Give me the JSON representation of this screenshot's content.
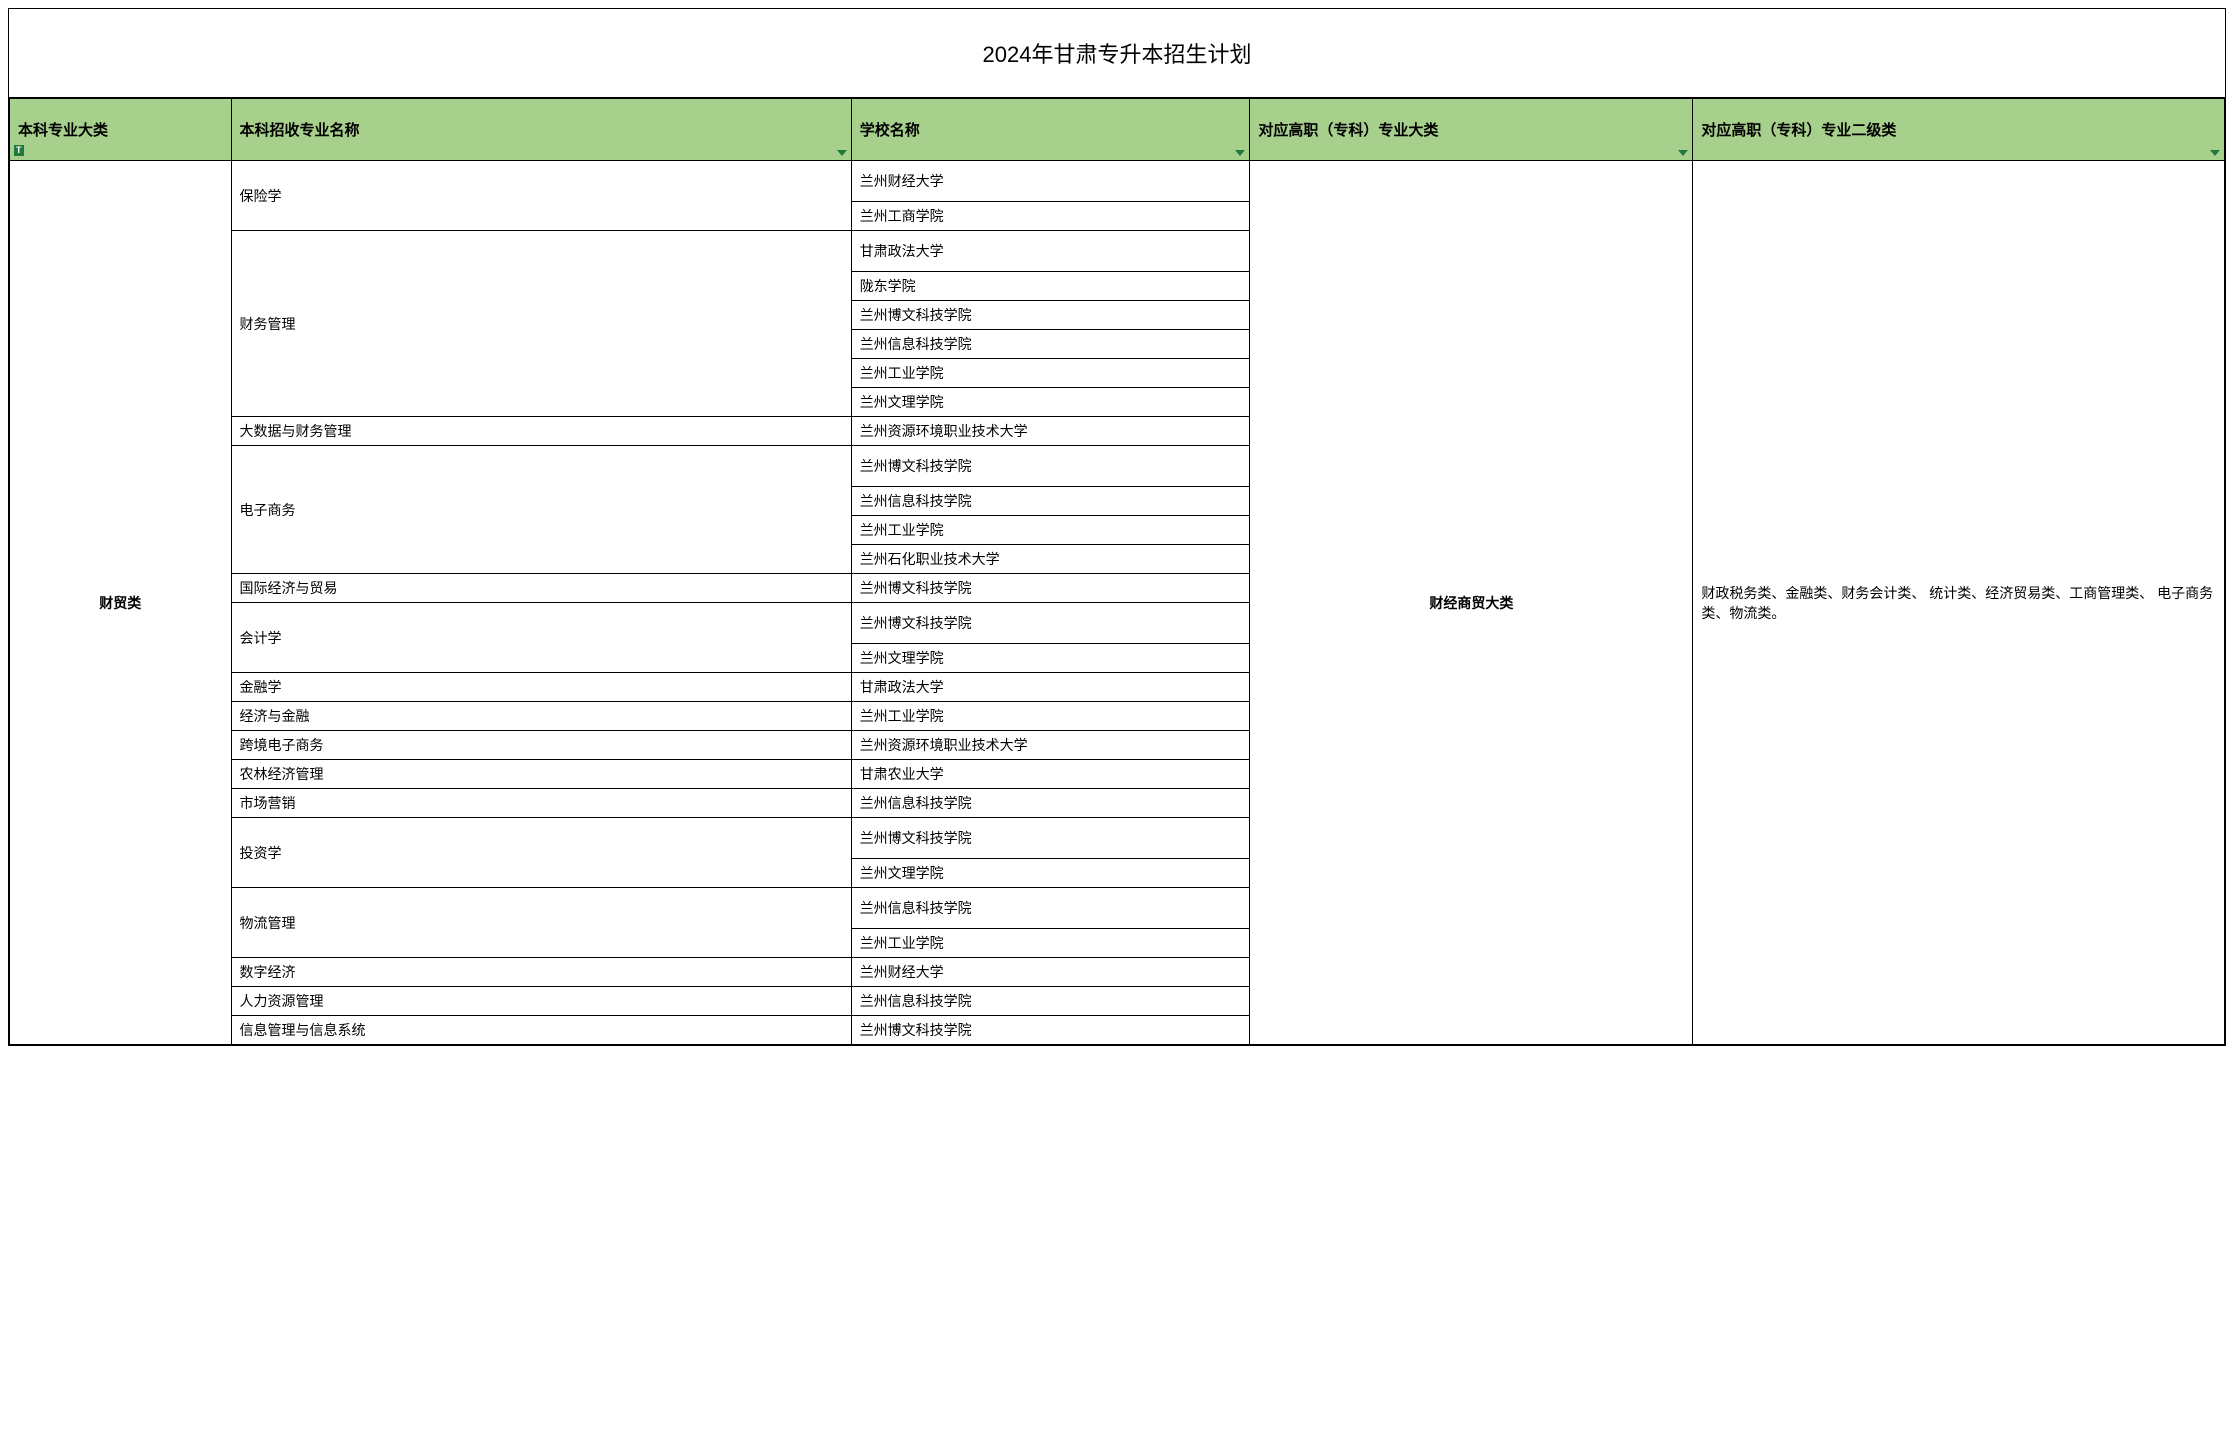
{
  "title": "2024年甘肃专升本招生计划",
  "headers": {
    "col1": "本科专业大类",
    "col2": "本科招收专业名称",
    "col3": "学校名称",
    "col4": "对应高职（专科）专业大类",
    "col5": "对应高职（专科）专业二级类"
  },
  "category": "财贸类",
  "vocational_category": "财经商贸大类",
  "vocational_sub": "财政税务类、金融类、财务会计类、 统计类、经济贸易类、工商管理类、 电子商务类、物流类。",
  "colors": {
    "header_bg": "#a8d08d",
    "border": "#000000",
    "filter_arrow": "#1f7a3e",
    "background": "#ffffff"
  },
  "majors": [
    {
      "name": "保险学",
      "schools": [
        "兰州财经大学",
        "兰州工商学院"
      ]
    },
    {
      "name": "财务管理",
      "schools": [
        "甘肃政法大学",
        "陇东学院",
        "兰州博文科技学院",
        "兰州信息科技学院",
        "兰州工业学院",
        "兰州文理学院"
      ]
    },
    {
      "name": "大数据与财务管理",
      "schools": [
        "兰州资源环境职业技术大学"
      ]
    },
    {
      "name": "电子商务",
      "schools": [
        "兰州博文科技学院",
        "兰州信息科技学院",
        "兰州工业学院",
        "兰州石化职业技术大学"
      ]
    },
    {
      "name": "国际经济与贸易",
      "schools": [
        "兰州博文科技学院"
      ]
    },
    {
      "name": "会计学",
      "schools": [
        "兰州博文科技学院",
        "兰州文理学院"
      ]
    },
    {
      "name": "金融学",
      "schools": [
        "甘肃政法大学"
      ]
    },
    {
      "name": "经济与金融",
      "schools": [
        "兰州工业学院"
      ]
    },
    {
      "name": "跨境电子商务",
      "schools": [
        "兰州资源环境职业技术大学"
      ]
    },
    {
      "name": "农林经济管理",
      "schools": [
        "甘肃农业大学"
      ]
    },
    {
      "name": "市场营销",
      "schools": [
        "兰州信息科技学院"
      ]
    },
    {
      "name": "投资学",
      "schools": [
        "兰州博文科技学院",
        "兰州文理学院"
      ]
    },
    {
      "name": "物流管理",
      "schools": [
        "兰州信息科技学院",
        "兰州工业学院"
      ]
    },
    {
      "name": "数字经济",
      "schools": [
        "兰州财经大学"
      ]
    },
    {
      "name": "人力资源管理",
      "schools": [
        "兰州信息科技学院"
      ]
    },
    {
      "name": "信息管理与信息系统",
      "schools": [
        "兰州博文科技学院"
      ]
    }
  ],
  "tall_rows": {
    "保险学_0": true,
    "财务管理_0": true,
    "电子商务_0": true,
    "会计学_0": true,
    "投资学_0": true,
    "物流管理_0": true
  }
}
